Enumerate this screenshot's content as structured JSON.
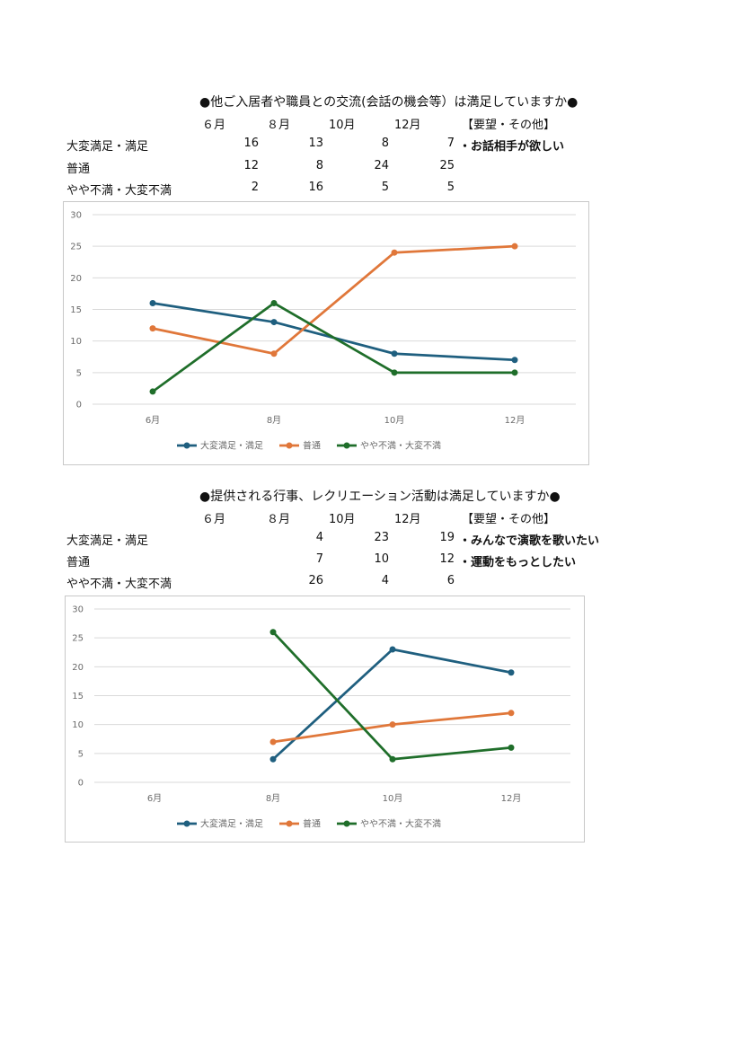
{
  "sections": [
    {
      "title": "●他ご入居者や職員との交流(会話の機会等）は満足していますか●",
      "months": [
        "６月",
        "８月",
        "10月",
        "12月"
      ],
      "request_header": "【要望・その他】",
      "rows": [
        {
          "label": "大変満足・満足",
          "values": [
            "16",
            "13",
            "8",
            "7"
          ],
          "request": "・お話相手が欲しい"
        },
        {
          "label": "普通",
          "values": [
            "12",
            "8",
            "24",
            "25"
          ],
          "request": ""
        },
        {
          "label": "やや不満・大変不満",
          "values": [
            "2",
            "16",
            "5",
            "5"
          ],
          "request": ""
        }
      ]
    },
    {
      "title": "●提供される行事、レクリエーション活動は満足していますか●",
      "months": [
        "６月",
        "８月",
        "10月",
        "12月"
      ],
      "request_header": "【要望・その他】",
      "rows": [
        {
          "label": "大変満足・満足",
          "values": [
            "",
            "4",
            "23",
            "19"
          ],
          "request": "・みんなで演歌を歌いたい"
        },
        {
          "label": "普通",
          "values": [
            "",
            "7",
            "10",
            "12"
          ],
          "request": "・運動をもっとしたい"
        },
        {
          "label": "やや不満・大変不満",
          "values": [
            "",
            "26",
            "4",
            "6"
          ],
          "request": ""
        }
      ]
    }
  ],
  "chart_data": [
    {
      "type": "line",
      "categories": [
        "6月",
        "8月",
        "10月",
        "12月"
      ],
      "ylim": [
        0,
        30
      ],
      "yticks": [
        0,
        5,
        10,
        15,
        20,
        25,
        30
      ],
      "grid": true,
      "legend": "bottom",
      "series": [
        {
          "name": "大変満足・満足",
          "color": "#1f5f7f",
          "values": [
            16,
            13,
            8,
            7
          ]
        },
        {
          "name": "普通",
          "color": "#e0773a",
          "values": [
            12,
            8,
            24,
            25
          ]
        },
        {
          "name": "やや不満・大変不満",
          "color": "#1f6e2a",
          "values": [
            2,
            16,
            5,
            5
          ]
        }
      ]
    },
    {
      "type": "line",
      "categories": [
        "6月",
        "8月",
        "10月",
        "12月"
      ],
      "ylim": [
        0,
        30
      ],
      "yticks": [
        0,
        5,
        10,
        15,
        20,
        25,
        30
      ],
      "grid": true,
      "legend": "bottom",
      "series": [
        {
          "name": "大変満足・満足",
          "color": "#1f5f7f",
          "values": [
            null,
            4,
            23,
            19
          ]
        },
        {
          "name": "普通",
          "color": "#e0773a",
          "values": [
            null,
            7,
            10,
            12
          ]
        },
        {
          "name": "やや不満・大変不満",
          "color": "#1f6e2a",
          "values": [
            null,
            26,
            4,
            6
          ]
        }
      ]
    }
  ]
}
